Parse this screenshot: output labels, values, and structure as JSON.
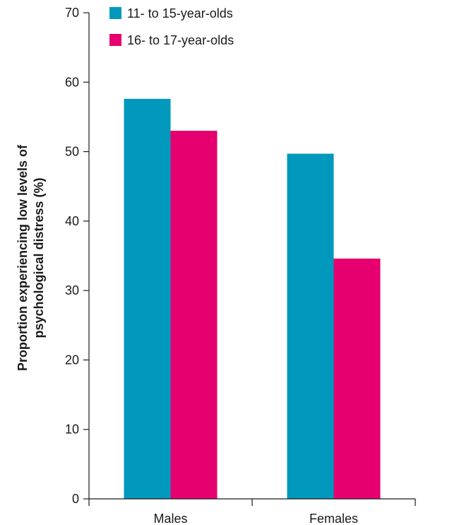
{
  "chart_data": {
    "type": "bar",
    "title": "",
    "xlabel": "",
    "ylabel_lines": [
      "Proportion experiencing low levels of",
      "psychological distress (%)"
    ],
    "categories": [
      "Males",
      "Females"
    ],
    "series": [
      {
        "name": "11- to 15-year-olds",
        "values": [
          57.6,
          49.7
        ],
        "color": "#0099bd"
      },
      {
        "name": "16- to 17-year-olds",
        "values": [
          53.0,
          34.6
        ],
        "color": "#e6006f"
      }
    ],
    "ylim": [
      0,
      70
    ],
    "yticks": [
      "0",
      "10",
      "20",
      "30",
      "40",
      "50",
      "60",
      "70"
    ],
    "grid": false,
    "legend_position": "top-left"
  }
}
